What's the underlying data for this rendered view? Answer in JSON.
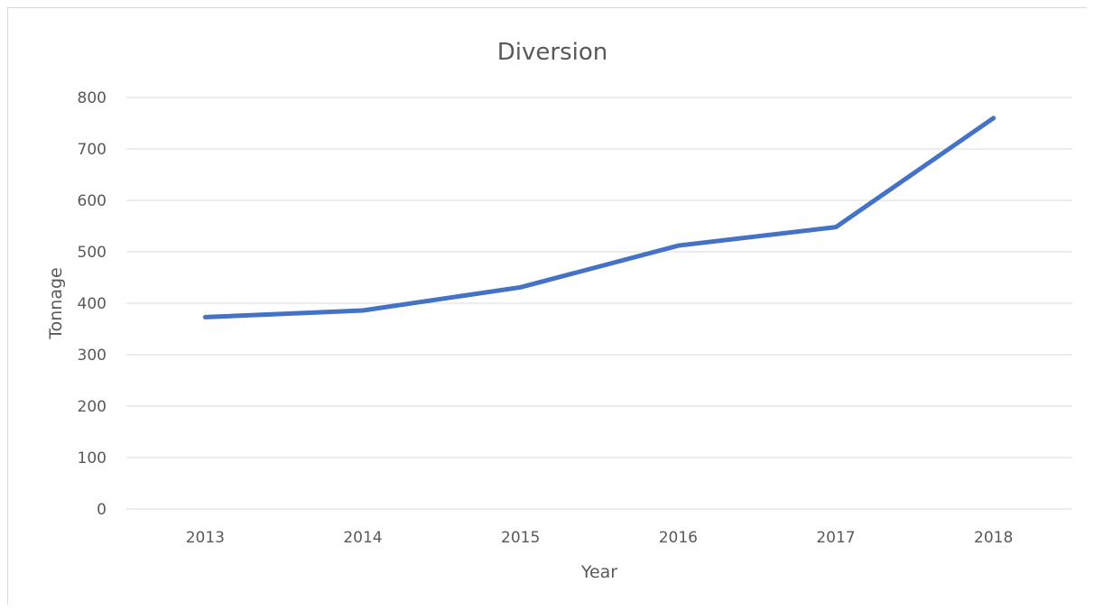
{
  "chart_data": {
    "type": "line",
    "title": "Diversion",
    "xlabel": "Year",
    "ylabel": "Tonnage",
    "categories": [
      "2013",
      "2014",
      "2015",
      "2016",
      "2017",
      "2018"
    ],
    "series": [
      {
        "values": [
          373,
          386,
          431,
          512,
          548,
          760
        ],
        "color": "#4472C4"
      }
    ],
    "ylim": [
      0,
      800
    ],
    "yticks": [
      "0",
      "100",
      "200",
      "300",
      "400",
      "500",
      "600",
      "700",
      "800"
    ],
    "grid": true,
    "legend": "none"
  }
}
